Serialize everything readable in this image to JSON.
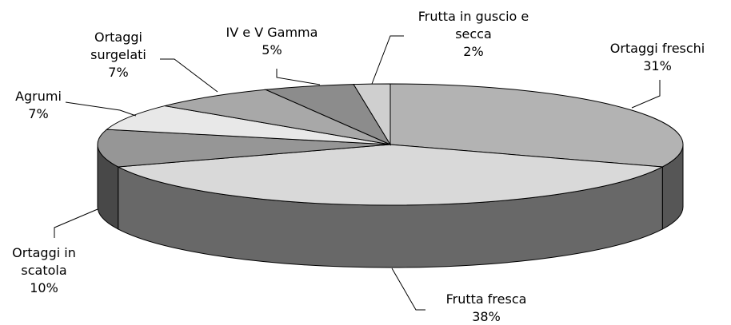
{
  "chart_data": {
    "type": "pie3d",
    "categories": [
      "Ortaggi freschi",
      "Frutta fresca",
      "Ortaggi in scatola",
      "Agrumi",
      "Ortaggi surgelati",
      "IV e V Gamma",
      "Frutta in guscio e secca"
    ],
    "values": [
      31,
      38,
      10,
      7,
      7,
      5,
      2
    ],
    "value_labels": [
      "31%",
      "38%",
      "10%",
      "7%",
      "7%",
      "5%",
      "2%"
    ],
    "colors": [
      "#b3b3b3",
      "#d9d9d9",
      "#969696",
      "#e8e8e8",
      "#a8a8a8",
      "#8c8c8c",
      "#cfcfcf"
    ]
  }
}
